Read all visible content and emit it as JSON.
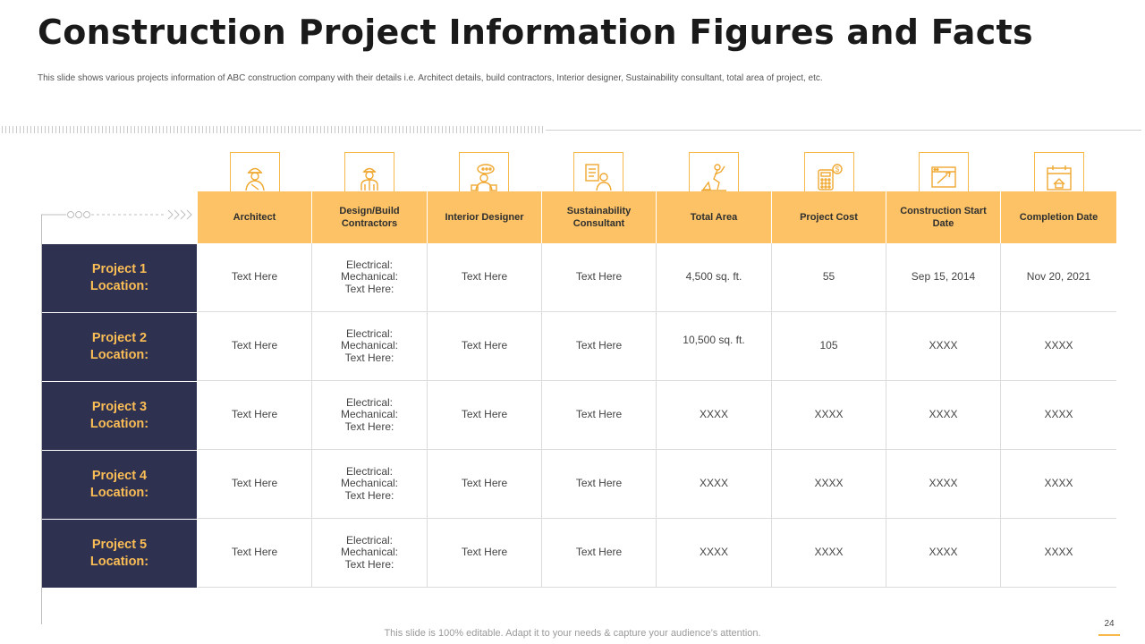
{
  "title": "Construction Project Information Figures and Facts",
  "subtitle": "This slide shows various projects information of ABC construction company with their details i.e. Architect details, build contractors, Interior designer, Sustainability consultant, total area of project, etc.",
  "columns": [
    {
      "label": "Architect",
      "icon": "architect-icon"
    },
    {
      "label": "Design/Build Contractors",
      "icon": "contractor-icon"
    },
    {
      "label": "Interior Designer",
      "icon": "interior-designer-icon"
    },
    {
      "label": "Sustainability Consultant",
      "icon": "consultant-icon"
    },
    {
      "label": "Total Area",
      "icon": "area-icon"
    },
    {
      "label": "Project Cost",
      "icon": "cost-icon"
    },
    {
      "label": "Construction Start Date",
      "icon": "start-date-icon"
    },
    {
      "label": "Completion Date",
      "icon": "completion-date-icon"
    }
  ],
  "rows": [
    {
      "line1": "Project 1",
      "line2": "Location:",
      "cells": [
        "Text Here",
        "Electrical:\nMechanical:\nText Here:",
        "Text Here",
        "Text Here",
        "4,500 sq. ft.",
        "55",
        "Sep 15, 2014",
        "Nov 20, 2021"
      ]
    },
    {
      "line1": "Project 2",
      "line2": "Location:",
      "cells": [
        "Text Here",
        "Electrical:\nMechanical:\nText Here:",
        "Text Here",
        "Text Here",
        "10,500 sq. ft.",
        "105",
        "XXXX",
        "XXXX"
      ]
    },
    {
      "line1": "Project 3",
      "line2": "Location:",
      "cells": [
        "Text Here",
        "Electrical:\nMechanical:\nText Here:",
        "Text Here",
        "Text Here",
        "XXXX",
        "XXXX",
        "XXXX",
        "XXXX"
      ]
    },
    {
      "line1": "Project 4",
      "line2": "Location:",
      "cells": [
        "Text Here",
        "Electrical:\nMechanical:\nText Here:",
        "Text Here",
        "Text Here",
        "XXXX",
        "XXXX",
        "XXXX",
        "XXXX"
      ]
    },
    {
      "line1": "Project 5",
      "line2": "Location:",
      "cells": [
        "Text Here",
        "Electrical:\nMechanical:\nText Here:",
        "Text Here",
        "Text Here",
        "XXXX",
        "XXXX",
        "XXXX",
        "XXXX"
      ]
    }
  ],
  "footer": "This slide is 100% editable. Adapt it to your needs & capture your audience’s attention.",
  "page_number": "24",
  "colors": {
    "accent": "#fcc265",
    "row_label_bg": "#2e3150",
    "row_label_text": "#fbbd55"
  }
}
